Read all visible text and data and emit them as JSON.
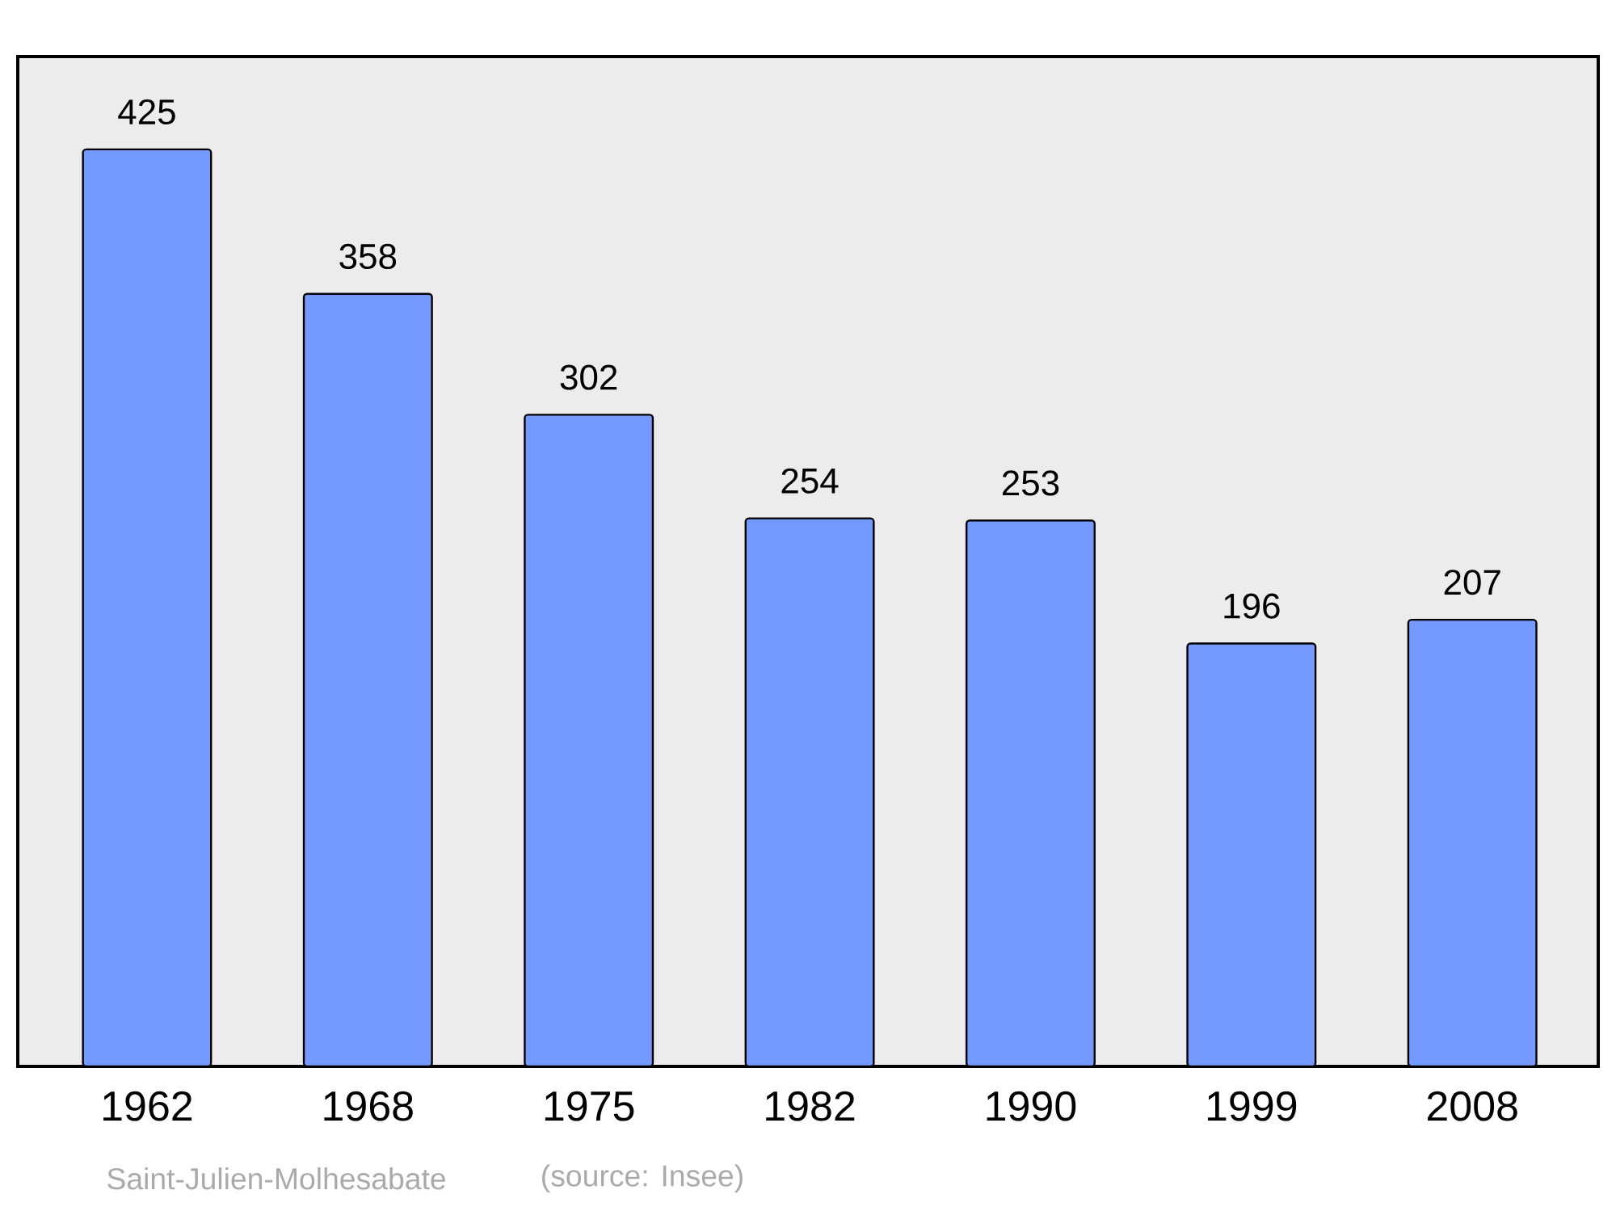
{
  "chart_data": {
    "type": "bar",
    "categories": [
      "1962",
      "1968",
      "1975",
      "1982",
      "1990",
      "1999",
      "2008"
    ],
    "values": [
      425,
      358,
      302,
      254,
      253,
      196,
      207
    ],
    "color": "#7499ff",
    "ylim": [
      0,
      468
    ],
    "data_labels": true,
    "annotations": [
      "Saint-Julien-Molhesabate",
      "(source: Insee)"
    ]
  }
}
